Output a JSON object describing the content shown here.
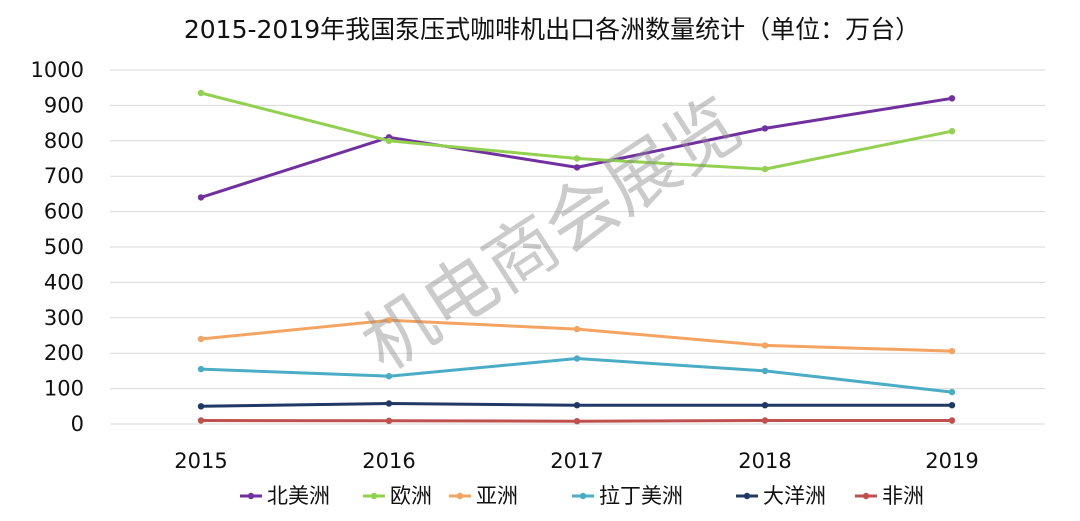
{
  "chart_data": {
    "type": "line",
    "title": "2015-2019年我国泵压式咖啡机出口各洲数量统计（单位：万台）",
    "xlabel": "",
    "ylabel": "",
    "categories": [
      "2015",
      "2016",
      "2017",
      "2018",
      "2019"
    ],
    "y_ticks": [
      "0",
      "100",
      "200",
      "300",
      "400",
      "500",
      "600",
      "700",
      "800",
      "900",
      "1000"
    ],
    "ylim": [
      0,
      1000
    ],
    "grid": true,
    "legend_position": "bottom",
    "series": [
      {
        "name": "北美洲",
        "color": "#7030a0",
        "values": [
          640,
          810,
          725,
          835,
          920
        ]
      },
      {
        "name": "欧洲",
        "color": "#92d050",
        "values": [
          935,
          800,
          750,
          720,
          827
        ]
      },
      {
        "name": "亚洲",
        "color": "#f4a460",
        "values": [
          240,
          293,
          268,
          222,
          206
        ]
      },
      {
        "name": "拉丁美洲",
        "color": "#4bacc6",
        "values": [
          155,
          135,
          185,
          150,
          90
        ]
      },
      {
        "name": "大洋洲",
        "color": "#1f3864",
        "values": [
          50,
          58,
          53,
          53,
          53
        ]
      },
      {
        "name": "非洲",
        "color": "#c0504d",
        "values": [
          10,
          9,
          8,
          10,
          10
        ]
      }
    ]
  },
  "watermark": "机电商会展览"
}
